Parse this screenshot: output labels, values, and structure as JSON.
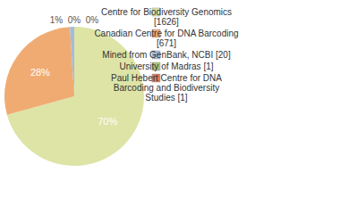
{
  "chart_data": {
    "type": "pie",
    "categories": [
      "Centre for Biodiversity Genomics [1626]",
      "Canadian Centre for DNA Barcoding [671]",
      "Mined from GenBank, NCBI [20]",
      "University of Madras [1]",
      "Paul Hebert Centre for DNA Barcoding and Biodiversity Studies [1]"
    ],
    "values": [
      70,
      28,
      1,
      0,
      0
    ],
    "value_labels": [
      "70%",
      "28%",
      "1%",
      "0%",
      "0%"
    ],
    "colors": [
      "#dde4a6",
      "#f0ab72",
      "#a3bcd9",
      "#a9c47c",
      "#e1785c"
    ],
    "data_labels": true,
    "legend": "top-right"
  }
}
